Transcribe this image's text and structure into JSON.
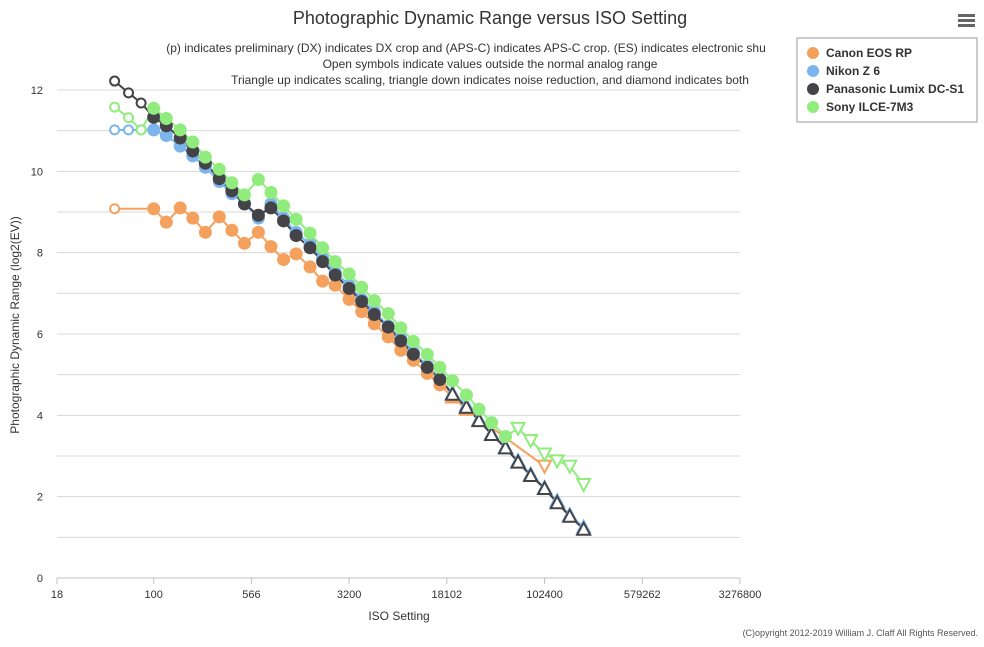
{
  "chart_data": {
    "type": "line",
    "title": "Photographic Dynamic Range versus ISO Setting",
    "subtitle": [
      "(p) indicates preliminary (DX) indicates DX crop and (APS-C) indicates APS-C crop. (ES) indicates electronic shu",
      "Open symbols indicate values outside the normal analog range",
      "Triangle up indicates scaling, triangle down indicates noise reduction, and diamond indicates both"
    ],
    "xlabel": "ISO Setting",
    "ylabel": "Photographic Dynamic Range (log2(EV))",
    "x_scale": "log2",
    "xlim": [
      18,
      3276800
    ],
    "ylim": [
      0,
      12
    ],
    "x_ticks": [
      "18",
      "100",
      "566",
      "3200",
      "18102",
      "102400",
      "579262",
      "3276800"
    ],
    "y_ticks": [
      "0",
      "2",
      "4",
      "6",
      "8",
      "10",
      "12"
    ],
    "grid": true,
    "legend_position": "top-right",
    "copyright": "(C)opyright 2012-2019 William J. Claff All Rights Reserved.",
    "series": [
      {
        "name": "Canon EOS RP",
        "color": "#f4a15d",
        "points": [
          {
            "x": 50,
            "y": 9.08,
            "m": "open"
          },
          {
            "x": 100,
            "y": 9.08,
            "m": "filled"
          },
          {
            "x": 125,
            "y": 8.75,
            "m": "filled"
          },
          {
            "x": 160,
            "y": 9.1,
            "m": "filled"
          },
          {
            "x": 200,
            "y": 8.85,
            "m": "filled"
          },
          {
            "x": 250,
            "y": 8.5,
            "m": "filled"
          },
          {
            "x": 320,
            "y": 8.88,
            "m": "filled"
          },
          {
            "x": 400,
            "y": 8.55,
            "m": "filled"
          },
          {
            "x": 500,
            "y": 8.23,
            "m": "filled"
          },
          {
            "x": 640,
            "y": 8.5,
            "m": "filled"
          },
          {
            "x": 800,
            "y": 8.15,
            "m": "filled"
          },
          {
            "x": 1000,
            "y": 7.83,
            "m": "filled"
          },
          {
            "x": 1250,
            "y": 7.97,
            "m": "filled"
          },
          {
            "x": 1600,
            "y": 7.65,
            "m": "filled"
          },
          {
            "x": 2000,
            "y": 7.3,
            "m": "filled"
          },
          {
            "x": 2500,
            "y": 7.2,
            "m": "filled"
          },
          {
            "x": 3200,
            "y": 6.85,
            "m": "filled"
          },
          {
            "x": 4000,
            "y": 6.55,
            "m": "filled"
          },
          {
            "x": 5000,
            "y": 6.25,
            "m": "filled"
          },
          {
            "x": 6400,
            "y": 5.93,
            "m": "filled"
          },
          {
            "x": 8000,
            "y": 5.6,
            "m": "filled"
          },
          {
            "x": 10000,
            "y": 5.35,
            "m": "filled"
          },
          {
            "x": 12800,
            "y": 5.03,
            "m": "filled"
          },
          {
            "x": 16000,
            "y": 4.75,
            "m": "filled"
          },
          {
            "x": 20000,
            "y": 4.45,
            "m": "tri-up"
          },
          {
            "x": 25600,
            "y": 4.15,
            "m": "tri-up"
          },
          {
            "x": 102400,
            "y": 2.75,
            "m": "tri-down-open"
          }
        ]
      },
      {
        "name": "Nikon Z 6",
        "color": "#7cb5ec",
        "points": [
          {
            "x": 50,
            "y": 11.02,
            "m": "open"
          },
          {
            "x": 64,
            "y": 11.02,
            "m": "open"
          },
          {
            "x": 80,
            "y": 11.02,
            "m": "open"
          },
          {
            "x": 100,
            "y": 11.02,
            "m": "filled"
          },
          {
            "x": 125,
            "y": 10.88,
            "m": "filled"
          },
          {
            "x": 160,
            "y": 10.62,
            "m": "filled"
          },
          {
            "x": 200,
            "y": 10.38,
            "m": "filled"
          },
          {
            "x": 250,
            "y": 10.1,
            "m": "filled"
          },
          {
            "x": 320,
            "y": 9.75,
            "m": "filled"
          },
          {
            "x": 400,
            "y": 9.45,
            "m": "filled"
          },
          {
            "x": 500,
            "y": 9.2,
            "m": "filled"
          },
          {
            "x": 640,
            "y": 8.85,
            "m": "filled"
          },
          {
            "x": 800,
            "y": 9.2,
            "m": "filled"
          },
          {
            "x": 1000,
            "y": 8.85,
            "m": "filled"
          },
          {
            "x": 1250,
            "y": 8.5,
            "m": "filled"
          },
          {
            "x": 1600,
            "y": 8.2,
            "m": "filled"
          },
          {
            "x": 2000,
            "y": 7.85,
            "m": "filled"
          },
          {
            "x": 2500,
            "y": 7.52,
            "m": "filled"
          },
          {
            "x": 3200,
            "y": 7.2,
            "m": "filled"
          },
          {
            "x": 4000,
            "y": 6.85,
            "m": "filled"
          },
          {
            "x": 5000,
            "y": 6.55,
            "m": "filled"
          },
          {
            "x": 6400,
            "y": 6.2,
            "m": "filled"
          },
          {
            "x": 8000,
            "y": 5.88,
            "m": "filled"
          },
          {
            "x": 10000,
            "y": 5.55,
            "m": "filled"
          },
          {
            "x": 12800,
            "y": 5.22,
            "m": "filled"
          },
          {
            "x": 16000,
            "y": 4.9,
            "m": "filled"
          },
          {
            "x": 20000,
            "y": 4.55,
            "m": "tri-up"
          },
          {
            "x": 25600,
            "y": 4.25,
            "m": "tri-up"
          },
          {
            "x": 32000,
            "y": 3.9,
            "m": "tri-up"
          },
          {
            "x": 40000,
            "y": 3.55,
            "m": "tri-up"
          },
          {
            "x": 51200,
            "y": 3.22,
            "m": "tri-up"
          },
          {
            "x": 64000,
            "y": 2.88,
            "m": "tri-up"
          },
          {
            "x": 80000,
            "y": 2.55,
            "m": "tri-up"
          },
          {
            "x": 102400,
            "y": 2.22,
            "m": "tri-up"
          },
          {
            "x": 128000,
            "y": 1.9,
            "m": "tri-up"
          },
          {
            "x": 160000,
            "y": 1.55,
            "m": "tri-up"
          },
          {
            "x": 204800,
            "y": 1.25,
            "m": "tri-up"
          }
        ]
      },
      {
        "name": "Panasonic Lumix DC-S1",
        "color": "#434348",
        "points": [
          {
            "x": 50,
            "y": 12.22,
            "m": "open"
          },
          {
            "x": 64,
            "y": 11.93,
            "m": "open"
          },
          {
            "x": 80,
            "y": 11.68,
            "m": "open"
          },
          {
            "x": 100,
            "y": 11.33,
            "m": "filled"
          },
          {
            "x": 125,
            "y": 11.12,
            "m": "filled"
          },
          {
            "x": 160,
            "y": 10.82,
            "m": "filled"
          },
          {
            "x": 200,
            "y": 10.5,
            "m": "filled"
          },
          {
            "x": 250,
            "y": 10.2,
            "m": "filled"
          },
          {
            "x": 320,
            "y": 9.82,
            "m": "filled"
          },
          {
            "x": 400,
            "y": 9.52,
            "m": "filled"
          },
          {
            "x": 500,
            "y": 9.2,
            "m": "filled"
          },
          {
            "x": 640,
            "y": 8.92,
            "m": "filled"
          },
          {
            "x": 800,
            "y": 9.1,
            "m": "filled"
          },
          {
            "x": 1000,
            "y": 8.78,
            "m": "filled"
          },
          {
            "x": 1250,
            "y": 8.42,
            "m": "filled"
          },
          {
            "x": 1600,
            "y": 8.12,
            "m": "filled"
          },
          {
            "x": 2000,
            "y": 7.78,
            "m": "filled"
          },
          {
            "x": 2500,
            "y": 7.45,
            "m": "filled"
          },
          {
            "x": 3200,
            "y": 7.12,
            "m": "filled"
          },
          {
            "x": 4000,
            "y": 6.8,
            "m": "filled"
          },
          {
            "x": 5000,
            "y": 6.48,
            "m": "filled"
          },
          {
            "x": 6400,
            "y": 6.17,
            "m": "filled"
          },
          {
            "x": 8000,
            "y": 5.83,
            "m": "filled"
          },
          {
            "x": 10000,
            "y": 5.5,
            "m": "filled"
          },
          {
            "x": 12800,
            "y": 5.18,
            "m": "filled"
          },
          {
            "x": 16000,
            "y": 4.88,
            "m": "filled"
          },
          {
            "x": 20000,
            "y": 4.52,
            "m": "tri-up-open"
          },
          {
            "x": 25600,
            "y": 4.2,
            "m": "tri-up-open"
          },
          {
            "x": 32000,
            "y": 3.87,
            "m": "tri-up-open"
          },
          {
            "x": 40000,
            "y": 3.53,
            "m": "tri-up-open"
          },
          {
            "x": 51200,
            "y": 3.2,
            "m": "tri-up-open"
          },
          {
            "x": 64000,
            "y": 2.85,
            "m": "tri-up-open"
          },
          {
            "x": 80000,
            "y": 2.52,
            "m": "tri-up-open"
          },
          {
            "x": 102400,
            "y": 2.2,
            "m": "tri-up-open"
          },
          {
            "x": 128000,
            "y": 1.85,
            "m": "tri-up-open"
          },
          {
            "x": 160000,
            "y": 1.52,
            "m": "tri-up-open"
          },
          {
            "x": 204800,
            "y": 1.2,
            "m": "tri-up-open"
          }
        ]
      },
      {
        "name": "Sony ILCE-7M3",
        "color": "#90ed7d",
        "points": [
          {
            "x": 50,
            "y": 11.58,
            "m": "open"
          },
          {
            "x": 64,
            "y": 11.32,
            "m": "open"
          },
          {
            "x": 80,
            "y": 11.02,
            "m": "open"
          },
          {
            "x": 100,
            "y": 11.55,
            "m": "filled"
          },
          {
            "x": 125,
            "y": 11.3,
            "m": "filled"
          },
          {
            "x": 160,
            "y": 11.02,
            "m": "filled"
          },
          {
            "x": 200,
            "y": 10.72,
            "m": "filled"
          },
          {
            "x": 250,
            "y": 10.35,
            "m": "filled"
          },
          {
            "x": 320,
            "y": 10.05,
            "m": "filled"
          },
          {
            "x": 400,
            "y": 9.72,
            "m": "filled"
          },
          {
            "x": 500,
            "y": 9.42,
            "m": "filled"
          },
          {
            "x": 640,
            "y": 9.8,
            "m": "filled"
          },
          {
            "x": 800,
            "y": 9.48,
            "m": "filled"
          },
          {
            "x": 1000,
            "y": 9.15,
            "m": "filled"
          },
          {
            "x": 1250,
            "y": 8.82,
            "m": "filled"
          },
          {
            "x": 1600,
            "y": 8.48,
            "m": "filled"
          },
          {
            "x": 2000,
            "y": 8.12,
            "m": "filled"
          },
          {
            "x": 2500,
            "y": 7.78,
            "m": "filled"
          },
          {
            "x": 3200,
            "y": 7.48,
            "m": "filled"
          },
          {
            "x": 4000,
            "y": 7.15,
            "m": "filled"
          },
          {
            "x": 5000,
            "y": 6.82,
            "m": "filled"
          },
          {
            "x": 6400,
            "y": 6.5,
            "m": "filled"
          },
          {
            "x": 8000,
            "y": 6.15,
            "m": "filled"
          },
          {
            "x": 10000,
            "y": 5.82,
            "m": "filled"
          },
          {
            "x": 12800,
            "y": 5.5,
            "m": "filled"
          },
          {
            "x": 16000,
            "y": 5.18,
            "m": "filled"
          },
          {
            "x": 20000,
            "y": 4.85,
            "m": "filled"
          },
          {
            "x": 25600,
            "y": 4.5,
            "m": "filled"
          },
          {
            "x": 32000,
            "y": 4.15,
            "m": "filled"
          },
          {
            "x": 40000,
            "y": 3.82,
            "m": "filled"
          },
          {
            "x": 51200,
            "y": 3.48,
            "m": "filled"
          },
          {
            "x": 64000,
            "y": 3.68,
            "m": "tri-down-open"
          },
          {
            "x": 80000,
            "y": 3.38,
            "m": "tri-down-open"
          },
          {
            "x": 102400,
            "y": 3.05,
            "m": "tri-down-open"
          },
          {
            "x": 128000,
            "y": 2.88,
            "m": "tri-down-open"
          },
          {
            "x": 160000,
            "y": 2.75,
            "m": "tri-down-open"
          },
          {
            "x": 204800,
            "y": 2.3,
            "m": "tri-down-open"
          }
        ]
      }
    ]
  },
  "menu": {
    "icon": "hamburger-menu-icon"
  }
}
